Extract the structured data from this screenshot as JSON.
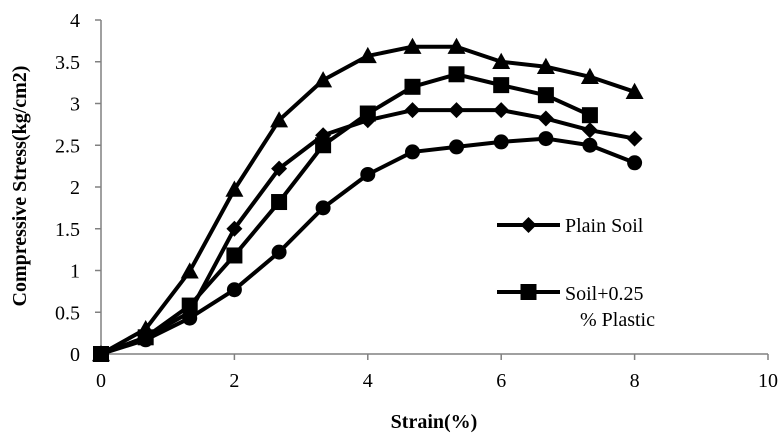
{
  "chart_data": {
    "type": "line",
    "title": "",
    "xlabel": "Strain(%)",
    "ylabel": "Compressive Stress(kg/cm2)",
    "xlim": [
      0,
      10
    ],
    "ylim": [
      0,
      4
    ],
    "x_ticks": [
      0,
      2,
      4,
      6,
      8,
      10
    ],
    "x_tick_labels": [
      "0",
      "2",
      "4",
      "6",
      "8",
      "10"
    ],
    "y_ticks": [
      0,
      0.5,
      1,
      1.5,
      2,
      2.5,
      3,
      3.5,
      4
    ],
    "y_tick_labels": [
      "0",
      "0.5",
      "1",
      "1.5",
      "2",
      "2.5",
      "3",
      "3.5",
      "4"
    ],
    "grid": false,
    "legend_position": "right",
    "series": [
      {
        "name": "Plain Soil",
        "marker": "diamond",
        "in_legend": true,
        "legend_lines": [
          "Plain Soil"
        ],
        "color": "#000000",
        "x": [
          0,
          0.67,
          1.33,
          2,
          2.67,
          3.33,
          4,
          4.67,
          5.33,
          6,
          6.67,
          7.33,
          8
        ],
        "y": [
          0,
          0.2,
          0.5,
          1.5,
          2.22,
          2.62,
          2.8,
          2.92,
          2.92,
          2.92,
          2.82,
          2.68,
          2.58
        ]
      },
      {
        "name": "Soil+0.25 % Plastic",
        "marker": "square",
        "in_legend": true,
        "legend_lines": [
          "Soil+0.25",
          "% Plastic"
        ],
        "color": "#000000",
        "x": [
          0,
          0.67,
          1.33,
          2,
          2.67,
          3.33,
          4,
          4.67,
          5.33,
          6,
          6.67,
          7.33,
          8
        ],
        "y": [
          0,
          0.2,
          0.58,
          1.18,
          1.82,
          2.5,
          2.88,
          3.2,
          3.35,
          3.22,
          3.1,
          2.86,
          null
        ]
      },
      {
        "marker": "triangle",
        "in_legend": false,
        "color": "#000000",
        "x": [
          0,
          0.67,
          1.33,
          2,
          2.67,
          3.33,
          4,
          4.67,
          5.33,
          6,
          6.67,
          7.33,
          8
        ],
        "y": [
          0,
          0.3,
          0.99,
          1.97,
          2.8,
          3.28,
          3.57,
          3.68,
          3.68,
          3.5,
          3.44,
          3.32,
          3.14
        ]
      },
      {
        "marker": "circle",
        "in_legend": false,
        "color": "#000000",
        "x": [
          0,
          0.67,
          1.33,
          2,
          2.67,
          3.33,
          4,
          4.67,
          5.33,
          6,
          6.67,
          7.33,
          8
        ],
        "y": [
          0,
          0.17,
          0.43,
          0.77,
          1.22,
          1.75,
          2.15,
          2.42,
          2.48,
          2.54,
          2.58,
          2.5,
          2.29
        ]
      }
    ]
  }
}
